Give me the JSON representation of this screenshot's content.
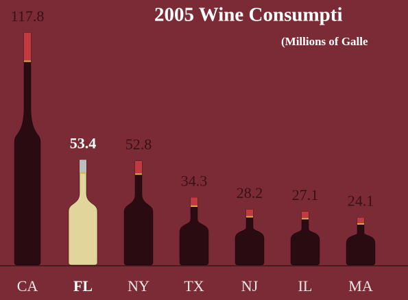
{
  "chart_data": {
    "type": "bottle",
    "title": "2005 Wine Consumpti",
    "subtitle": "(Millions of Galle",
    "categories": [
      "CA",
      "FL",
      "NY",
      "TX",
      "NJ",
      "IL",
      "MA"
    ],
    "values": [
      117.8,
      53.4,
      52.8,
      34.3,
      28.2,
      27.1,
      24.1
    ],
    "colors": [
      "#2a0b12",
      "#e2d59b",
      "#2a0b12",
      "#2a0b12",
      "#2a0b12",
      "#2a0b12",
      "#2a0b12"
    ],
    "capsule_colors": [
      "#c23a3f",
      "#b9c0bf",
      "#c23a3f",
      "#c23a3f",
      "#c23a3f",
      "#c23a3f",
      "#c23a3f"
    ],
    "label_colors": [
      "#3a0f16",
      "#ffffff",
      "#3a0f16",
      "#3a0f16",
      "#3a0f16",
      "#3a0f16",
      "#3a0f16"
    ],
    "category_colors": [
      "#f2e6e6",
      "#ffffff",
      "#f2e6e6",
      "#f2e6e6",
      "#f2e6e6",
      "#f2e6e6",
      "#f2e6e6"
    ],
    "bold": [
      false,
      true,
      false,
      false,
      false,
      false,
      false
    ]
  }
}
